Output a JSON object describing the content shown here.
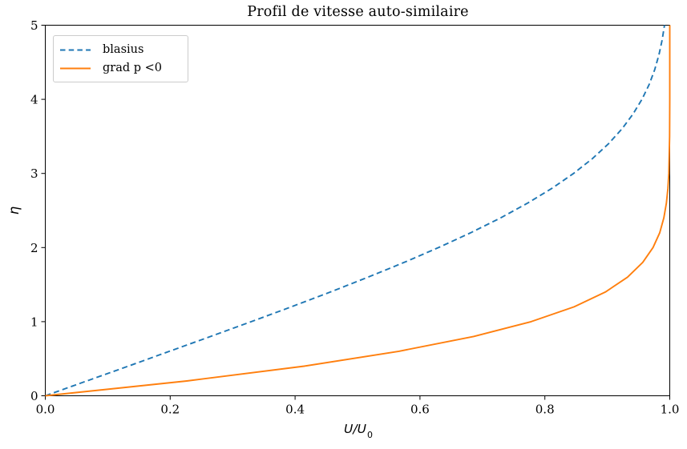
{
  "figure": {
    "background": "#ffffff"
  },
  "labels": {
    "xlabel_main": "U/U",
    "xlabel_sub": "0",
    "ylabel": "η"
  },
  "chart_data": {
    "type": "line",
    "title": "Profil de vitesse auto-similaire",
    "xlabel": "U/U_0",
    "ylabel": "eta",
    "xlim": [
      0.0,
      1.0
    ],
    "ylim": [
      0,
      5
    ],
    "grid": false,
    "legend_position": "upper left",
    "x_ticks": [
      {
        "value": 0.0,
        "label": "0.0"
      },
      {
        "value": 0.2,
        "label": "0.2"
      },
      {
        "value": 0.4,
        "label": "0.4"
      },
      {
        "value": 0.6,
        "label": "0.6"
      },
      {
        "value": 0.8,
        "label": "0.8"
      },
      {
        "value": 1.0,
        "label": "1.0"
      }
    ],
    "y_ticks": [
      {
        "value": 0,
        "label": "0"
      },
      {
        "value": 1,
        "label": "1"
      },
      {
        "value": 2,
        "label": "2"
      },
      {
        "value": 3,
        "label": "3"
      },
      {
        "value": 4,
        "label": "4"
      },
      {
        "value": 5,
        "label": "5"
      }
    ],
    "series": [
      {
        "name": "blasius",
        "color": "#1f77b4",
        "style": "dashed",
        "x_is": "U/U0",
        "y_is": "eta",
        "eta": [
          0.0,
          0.2,
          0.4,
          0.6,
          0.8,
          1.0,
          1.2,
          1.4,
          1.6,
          1.8,
          2.0,
          2.2,
          2.4,
          2.6,
          2.8,
          3.0,
          3.2,
          3.4,
          3.6,
          3.8,
          4.0,
          4.2,
          4.4,
          4.6,
          4.8,
          5.0
        ],
        "u": [
          0.0,
          0.0664,
          0.1328,
          0.1989,
          0.2647,
          0.3298,
          0.3938,
          0.4563,
          0.5168,
          0.5748,
          0.6298,
          0.6813,
          0.729,
          0.7725,
          0.8115,
          0.846,
          0.8761,
          0.9018,
          0.9233,
          0.9411,
          0.9555,
          0.967,
          0.9759,
          0.9827,
          0.9878,
          0.9915
        ]
      },
      {
        "name": "grad p <0",
        "color": "#ff7f0e",
        "style": "solid",
        "x_is": "U/U0",
        "y_is": "eta",
        "eta": [
          0.0,
          0.2,
          0.4,
          0.6,
          0.8,
          1.0,
          1.2,
          1.4,
          1.6,
          1.8,
          2.0,
          2.2,
          2.4,
          2.6,
          2.8,
          3.0,
          3.5,
          4.0,
          4.5,
          5.0
        ],
        "u": [
          0.0,
          0.2266,
          0.4145,
          0.5663,
          0.6859,
          0.7779,
          0.8467,
          0.8968,
          0.9323,
          0.9568,
          0.9732,
          0.9839,
          0.9905,
          0.9946,
          0.997,
          0.9984,
          0.9997,
          1.0,
          1.0,
          1.0
        ]
      }
    ]
  }
}
